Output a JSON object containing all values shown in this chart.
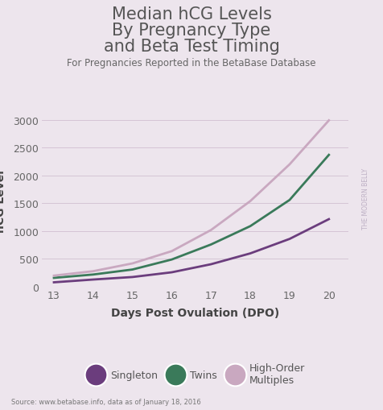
{
  "title_line1": "Median hCG Levels",
  "title_line2": "By Pregnancy Type",
  "title_line3": "and Beta Test Timing",
  "subtitle": "For Pregnancies Reported in the BetaBase Database",
  "source": "Source: www.betabase.info, data as of January 18, 2016",
  "watermark": "THE MODERN BELLY",
  "xlabel": "Days Post Ovulation (DPO)",
  "ylabel": "hCG Level",
  "background_color": "#ede5ed",
  "plot_background": "#ede5ed",
  "xdata": [
    13,
    14,
    15,
    16,
    17,
    18,
    19,
    20
  ],
  "singleton": [
    80,
    130,
    175,
    260,
    405,
    600,
    860,
    1215
  ],
  "twins": [
    160,
    220,
    310,
    490,
    760,
    1090,
    1560,
    2370
  ],
  "high_order": [
    200,
    280,
    420,
    640,
    1020,
    1540,
    2200,
    2990
  ],
  "singleton_color": "#6b3d7d",
  "twins_color": "#3a7a5a",
  "high_order_color": "#c9a8c0",
  "ylim": [
    0,
    3100
  ],
  "xlim": [
    12.7,
    20.5
  ],
  "yticks": [
    0,
    500,
    1000,
    1500,
    2000,
    2500,
    3000
  ],
  "xticks": [
    13,
    14,
    15,
    16,
    17,
    18,
    19,
    20
  ],
  "title_fontsize": 15,
  "subtitle_fontsize": 8.5,
  "axis_label_fontsize": 10,
  "tick_fontsize": 9,
  "legend_labels": [
    "Singleton",
    "Twins",
    "High-Order\nMultiples"
  ],
  "legend_colors": [
    "#6b3d7d",
    "#3a7a5a",
    "#c9a8c0"
  ],
  "title_color": "#555555",
  "subtitle_color": "#666666",
  "source_color": "#777777",
  "watermark_color": "#b8aac0",
  "watermark_highlight": "#a0d8ef",
  "line_width": 2.0
}
